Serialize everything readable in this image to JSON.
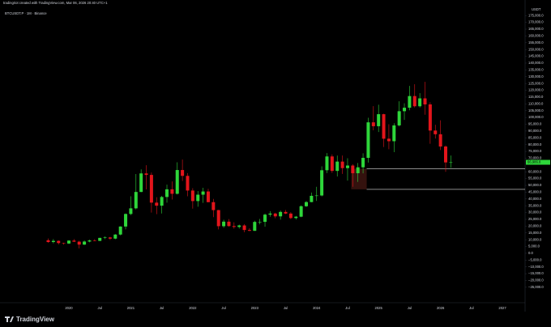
{
  "header": {
    "credit": "tradingriot created with TradingView.com, Mar 06, 2026 20:40 UTC+1"
  },
  "footer": {
    "logo": "TradingView"
  },
  "chart_data": {
    "type": "candlestick",
    "title": "BTCUSDT.P · 1M · Binance",
    "currency": "USDT",
    "categories": [
      null,
      null,
      null,
      null,
      "2020",
      null,
      null,
      null,
      null,
      null,
      "Jul",
      null,
      null,
      null,
      null,
      null,
      "2021",
      null,
      null,
      null,
      null,
      null,
      "Jul",
      null,
      null,
      null,
      null,
      null,
      "2022",
      null,
      null,
      null,
      null,
      null,
      "Jul",
      null,
      null,
      null,
      null,
      null,
      "2023",
      null,
      null,
      null,
      null,
      null,
      "Jul",
      null,
      null,
      null,
      null,
      null,
      "2024",
      null,
      null,
      null,
      null,
      null,
      "Jul",
      null,
      null,
      null,
      null,
      null,
      "2025",
      null,
      null,
      null,
      null,
      null,
      "Jul",
      null,
      null,
      null,
      null,
      null,
      "2026",
      null,
      null,
      null,
      null,
      null,
      "Jul",
      null,
      null,
      null,
      null,
      null,
      "2027"
    ],
    "open": [
      9600,
      8300,
      9150,
      7550,
      7200,
      9350,
      8550,
      6400,
      8650,
      9450,
      9150,
      11350,
      11650,
      10800,
      13800,
      19700,
      28950,
      33100,
      45150,
      58800,
      57700,
      37300,
      35050,
      41450,
      47100,
      43800,
      61300,
      57000,
      46200,
      38450,
      43150,
      45500,
      37650,
      31800,
      19950,
      23300,
      20050,
      19400,
      20500,
      17150,
      16550,
      23100,
      23150,
      28450,
      29250,
      27200,
      30450,
      29250,
      25950,
      26950,
      34650,
      37700,
      42300,
      42550,
      61150,
      71300,
      60650,
      67500,
      62700,
      64600,
      58950,
      63300,
      70250,
      96400,
      93550,
      102400,
      84350,
      82500,
      94150,
      104600,
      107150,
      115750,
      108250,
      114050,
      109600,
      90350,
      87650,
      78600,
      66900,
      null,
      null,
      null,
      null,
      null,
      null,
      null,
      null,
      null,
      null
    ],
    "high": [
      10900,
      10500,
      9500,
      7750,
      9600,
      10500,
      9200,
      9450,
      10100,
      10400,
      11450,
      12500,
      12100,
      14100,
      19900,
      29300,
      41950,
      58350,
      61800,
      64850,
      59500,
      41300,
      42300,
      50500,
      52900,
      67000,
      69000,
      59050,
      47950,
      45800,
      48200,
      47450,
      40000,
      31950,
      24700,
      25200,
      22800,
      21100,
      21500,
      18400,
      23950,
      25300,
      29200,
      31050,
      29850,
      31450,
      31850,
      30250,
      27500,
      35250,
      38450,
      44700,
      48950,
      64000,
      73800,
      72800,
      71950,
      72000,
      70000,
      65550,
      66500,
      73600,
      99800,
      108350,
      109350,
      102750,
      95000,
      95750,
      111900,
      110400,
      123200,
      124450,
      117900,
      126200,
      111150,
      94600,
      97900,
      79400,
      72000,
      null,
      null,
      null,
      null,
      null,
      null,
      null,
      null,
      null,
      null
    ],
    "low": [
      7700,
      7300,
      6500,
      6400,
      6850,
      8400,
      3600,
      6150,
      8100,
      8900,
      8950,
      10500,
      9850,
      10400,
      13200,
      17600,
      28100,
      32300,
      45000,
      47000,
      30000,
      28800,
      29300,
      37300,
      39600,
      43300,
      53250,
      42000,
      32900,
      34300,
      37150,
      37550,
      26600,
      17600,
      18800,
      19550,
      18150,
      18200,
      15450,
      16250,
      16500,
      21350,
      19550,
      26900,
      25800,
      24750,
      28850,
      25150,
      24900,
      26550,
      34100,
      37600,
      38550,
      41900,
      59050,
      59200,
      56550,
      58400,
      53550,
      49000,
      52550,
      58900,
      66800,
      90500,
      89250,
      78250,
      76600,
      74450,
      93400,
      98200,
      105300,
      107350,
      107250,
      102000,
      80600,
      84450,
      76000,
      60000,
      63000,
      null,
      null,
      null,
      null,
      null,
      null,
      null,
      null,
      null,
      null
    ],
    "close": [
      8300,
      9150,
      7550,
      7200,
      9350,
      8550,
      6400,
      8650,
      9450,
      9150,
      11350,
      11650,
      10800,
      13800,
      19700,
      28950,
      33100,
      45150,
      58800,
      57700,
      37300,
      35050,
      41450,
      47100,
      43800,
      61300,
      57000,
      46200,
      38450,
      43150,
      45500,
      37650,
      31800,
      19950,
      23300,
      20050,
      19400,
      20500,
      17150,
      16550,
      23100,
      23150,
      28450,
      29250,
      27200,
      30450,
      29250,
      25950,
      26950,
      34650,
      37700,
      42300,
      42550,
      61150,
      71300,
      60650,
      67500,
      62700,
      64600,
      58950,
      63300,
      70250,
      96400,
      93550,
      102400,
      84350,
      82500,
      94150,
      104600,
      107150,
      115750,
      108250,
      114050,
      109600,
      90350,
      87650,
      78600,
      66900,
      66986.8,
      null,
      null,
      null,
      null,
      null,
      null,
      null,
      null,
      null,
      null
    ],
    "up_color": "#2ed63a",
    "down_color": "#e3151b",
    "last_price": {
      "value": 66986.8,
      "label": "66,986.8"
    },
    "hlines": [
      62200,
      47100
    ],
    "ylim": [
      -34000,
      180500
    ],
    "yticks": [
      {
        "value": 175000,
        "label": "175,000.0"
      },
      {
        "value": 170000,
        "label": "170,000.0"
      },
      {
        "value": 165000,
        "label": "165,000.0"
      },
      {
        "value": 160000,
        "label": "160,000.0"
      },
      {
        "value": 155000,
        "label": "155,000.0"
      },
      {
        "value": 150000,
        "label": "150,000.0"
      },
      {
        "value": 145000,
        "label": "145,000.0"
      },
      {
        "value": 140000,
        "label": "140,000.0"
      },
      {
        "value": 135000,
        "label": "135,000.0"
      },
      {
        "value": 130000,
        "label": "130,000.0"
      },
      {
        "value": 125000,
        "label": "125,000.0"
      },
      {
        "value": 120000,
        "label": "120,000.0"
      },
      {
        "value": 115000,
        "label": "115,000.0"
      },
      {
        "value": 110000,
        "label": "110,000.0"
      },
      {
        "value": 105000,
        "label": "105,000.0"
      },
      {
        "value": 100000,
        "label": "100,000.0"
      },
      {
        "value": 95000,
        "label": "95,000.0"
      },
      {
        "value": 90000,
        "label": "90,000.0"
      },
      {
        "value": 85000,
        "label": "85,000.0"
      },
      {
        "value": 80000,
        "label": "80,000.0"
      },
      {
        "value": 75000,
        "label": "75,000.0"
      },
      {
        "value": 70000,
        "label": "70,000.0"
      },
      {
        "value": 60000,
        "label": "60,000.0"
      },
      {
        "value": 55000,
        "label": "55,000.0"
      },
      {
        "value": 50000,
        "label": "50,000.0"
      },
      {
        "value": 45000,
        "label": "45,000.0"
      },
      {
        "value": 40000,
        "label": "40,000.0"
      },
      {
        "value": 35000,
        "label": "35,000.0"
      },
      {
        "value": 30000,
        "label": "30,000.0"
      },
      {
        "value": 25000,
        "label": "25,000.0"
      },
      {
        "value": 20000,
        "label": "20,000.0"
      },
      {
        "value": 15000,
        "label": "15,000.0"
      },
      {
        "value": 10000,
        "label": "10,000.0"
      },
      {
        "value": 5000,
        "label": "5,000.0"
      },
      {
        "value": 0,
        "label": "0.0"
      },
      {
        "value": -5000,
        "label": "−5,000.0"
      },
      {
        "value": -10000,
        "label": "−10,000.0"
      },
      {
        "value": -15000,
        "label": "−15,000.0"
      },
      {
        "value": -20000,
        "label": "−20,000.0"
      },
      {
        "value": -25000,
        "label": "−25,000.0"
      }
    ],
    "grid": false
  }
}
